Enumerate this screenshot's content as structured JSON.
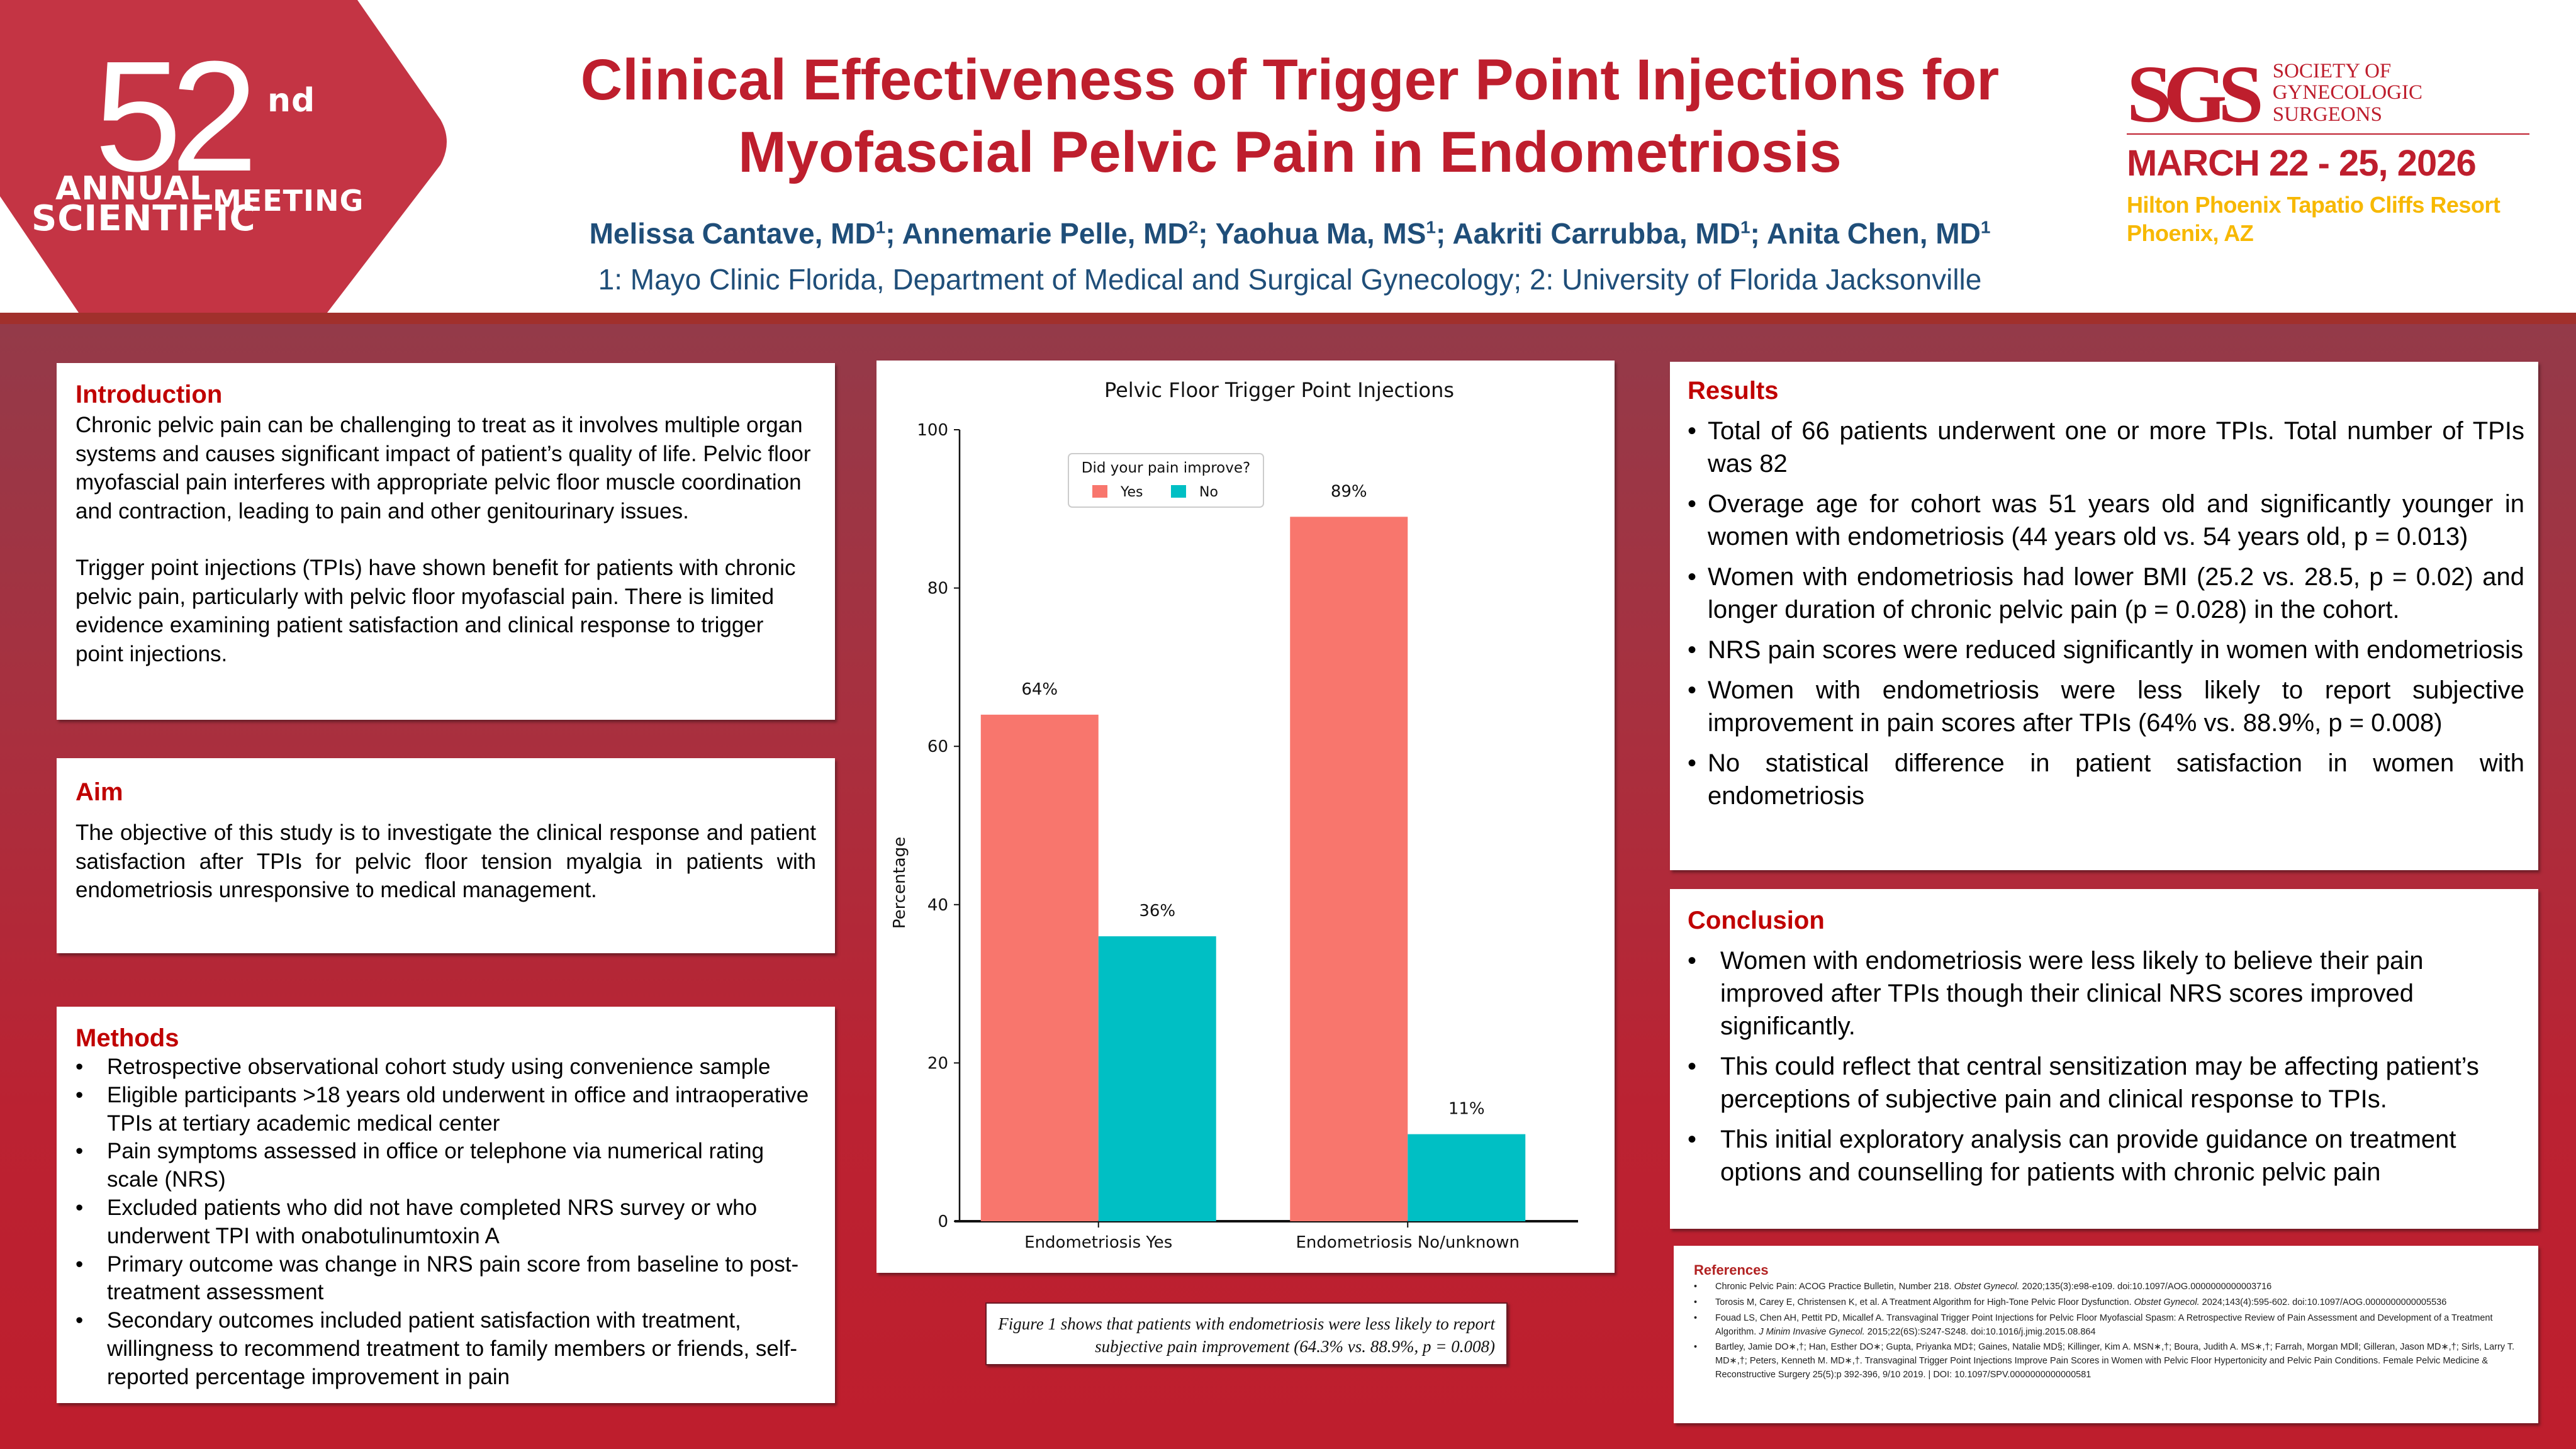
{
  "badge": {
    "number": "52",
    "suffix": "nd",
    "line1": "ANNUAL",
    "line2": "SCIENTIFIC",
    "line3": "MEETING",
    "color": "#c43444"
  },
  "header": {
    "title_line1": "Clinical Effectiveness of Trigger Point Injections for",
    "title_line2": "Myofascial Pelvic Pain in Endometriosis",
    "authors": [
      {
        "name": "Melissa Cantave, MD",
        "aff": "1",
        "sep": "; "
      },
      {
        "name": "Annemarie Pelle, MD",
        "aff": "2",
        "sep": ";  "
      },
      {
        "name": "Yaohua Ma, MS",
        "aff": "1",
        "sep": "; "
      },
      {
        "name": "Aakriti Carrubba, MD",
        "aff": "1",
        "sep": "; "
      },
      {
        "name": "Anita Chen, MD",
        "aff": "1",
        "sep": ""
      }
    ],
    "affiliations": "1: Mayo Clinic Florida, Department of Medical and Surgical Gynecology; 2: University of Florida Jacksonville"
  },
  "conference": {
    "logo_mark": "SGS",
    "org_line1": "SOCIETY OF",
    "org_line2": "GYNECOLOGIC SURGEONS",
    "dates": "MARCH 22 - 25, 2026",
    "venue": "Hilton Phoenix Tapatio Cliffs Resort",
    "city": "Phoenix, AZ"
  },
  "introduction": {
    "heading": "Introduction",
    "paragraphs": [
      "Chronic pelvic pain can be challenging to treat as it involves multiple organ systems and causes significant impact of patient’s quality of life. Pelvic floor myofascial pain interferes with appropriate pelvic floor muscle coordination and contraction, leading to pain and other genitourinary issues.",
      "Trigger point injections (TPIs) have shown benefit for patients with chronic pelvic pain, particularly with pelvic floor myofascial pain. There is limited evidence examining patient satisfaction and clinical response to trigger point injections."
    ]
  },
  "aim": {
    "heading": "Aim",
    "text": "The objective of this study is to investigate the clinical response and patient satisfaction after TPIs for pelvic floor tension myalgia in patients with endometriosis unresponsive to medical management."
  },
  "methods": {
    "heading": "Methods",
    "items": [
      "Retrospective observational cohort study using convenience sample",
      "Eligible participants >18 years old underwent in office and intraoperative TPIs at tertiary academic medical center",
      "Pain symptoms assessed in office or telephone via numerical rating scale (NRS)",
      "Excluded patients who did not have completed NRS survey or who underwent TPI with onabotulinumtoxin A",
      "Primary outcome was change in NRS pain score from baseline to post-treatment assessment",
      "Secondary outcomes included patient satisfaction with treatment, willingness to recommend treatment to family members or friends, self-reported percentage improvement in pain"
    ]
  },
  "chart_data": {
    "type": "bar",
    "title": "Pelvic Floor Trigger Point Injections",
    "xlabel": "",
    "ylabel": "Percentage",
    "ylim": [
      0,
      100
    ],
    "yticks": [
      0,
      20,
      40,
      60,
      80,
      100
    ],
    "categories": [
      "Endometriosis Yes",
      "Endometriosis No/unknown"
    ],
    "legend": {
      "title": "Did your pain improve?",
      "placement": "upper-left"
    },
    "series": [
      {
        "name": "Yes",
        "color": "#f8766d",
        "values": [
          64,
          89
        ],
        "labels": [
          "64%",
          "89%"
        ]
      },
      {
        "name": "No",
        "color": "#00bfc4",
        "values": [
          36,
          11
        ],
        "labels": [
          "36%",
          "11%"
        ]
      }
    ],
    "grid": false
  },
  "caption": {
    "text": "Figure 1 shows that patients with endometriosis were less likely to report subjective pain improvement (64.3% vs. 88.9%, p = 0.008)"
  },
  "results": {
    "heading": "Results",
    "items": [
      "Total of 66 patients underwent one or more TPIs. Total number of TPIs was 82",
      "Overage age for cohort was 51 years old and significantly younger in women with endometriosis (44 years old vs. 54 years old, p = 0.013)",
      "Women with endometriosis had lower BMI (25.2 vs. 28.5, p = 0.02) and longer duration of chronic pelvic pain (p = 0.028) in the cohort.",
      "NRS pain scores were reduced significantly in women with endometriosis",
      "Women with endometriosis were less likely to report subjective improvement in pain scores after TPIs (64% vs. 88.9%, p = 0.008)",
      "No statistical difference in patient satisfaction in women with endometriosis"
    ]
  },
  "conclusion": {
    "heading": "Conclusion",
    "items": [
      "Women with endometriosis were less likely to believe their pain improved after TPIs though their clinical NRS scores improved significantly.",
      "This could reflect that central sensitization may be affecting patient’s perceptions of subjective pain and clinical response to TPIs.",
      "This initial exploratory analysis can provide guidance on treatment options and counselling for patients with chronic pelvic pain"
    ]
  },
  "references": {
    "heading": "References",
    "items": [
      {
        "pre": "Chronic Pelvic Pain: ACOG Practice Bulletin, Number 218. ",
        "journal": "Obstet Gynecol.",
        "post": " 2020;135(3):e98-e109. doi:10.1097/AOG.0000000000003716"
      },
      {
        "pre": "Torosis M, Carey E, Christensen K, et al. A Treatment Algorithm for High-Tone Pelvic Floor Dysfunction. ",
        "journal": "Obstet Gynecol.",
        "post": " 2024;143(4):595-602. doi:10.1097/AOG.0000000000005536"
      },
      {
        "pre": "Fouad LS, Chen AH, Pettit PD, Micallef A. Transvaginal Trigger Point Injections for Pelvic Floor Myofascial Spasm: A Retrospective Review of Pain Assessment and Development of a Treatment Algorithm. ",
        "journal": "J Minim Invasive Gynecol.",
        "post": " 2015;22(6S):S247-S248. doi:10.1016/j.jmig.2015.08.864"
      },
      {
        "pre": "Bartley, Jamie DO∗,†; Han, Esther DO∗; Gupta, Priyanka MD‡; Gaines, Natalie MD§; Killinger, Kim A. MSN∗,†; Boura, Judith A. MS∗,†; Farrah, Morgan MD‖; Gilleran, Jason MD∗,†; Sirls, Larry T. MD∗,†; Peters, Kenneth M. MD∗,†. Transvaginal Trigger Point Injections Improve Pain Scores in Women with Pelvic Floor Hypertonicity and Pelvic Pain Conditions. Female Pelvic Medicine & Reconstructive Surgery 25(5):p 392-396, 9/10 2019. | DOI: 10.1097/SPV.0000000000000581",
        "journal": "",
        "post": ""
      }
    ]
  }
}
